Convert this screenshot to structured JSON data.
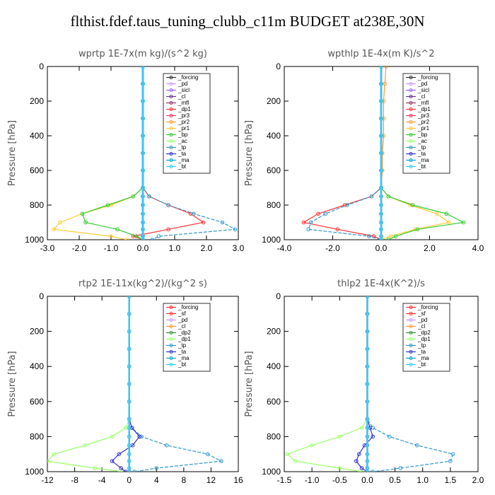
{
  "title": "flthist.fdef.taus_tuning_clubb_c11m  BUDGET at238E,30N",
  "colors": {
    "_forcing": "#333333",
    "_pd": "#cc99ff",
    "_sicl": "#9966ff",
    "_cl": "#663399",
    "_mfl": "#993366",
    "_dp1": "#ff3333",
    "_pr3": "#ff3366",
    "_pr2": "#ff9933",
    "_pr1": "#ffcc33",
    "_bp": "#33cc33",
    "_ac": "#99ff66",
    "_tp": "#3399cc",
    "_ta": "#3333cc",
    "_ma": "#00aacc",
    "_bt": "#33ccff",
    "_sf": "#ff3333",
    "_dp2": "#339933",
    "_forcing_red": "#ff3333"
  },
  "chart_data": [
    {
      "type": "line",
      "title": "wprtp   1E-7x(m kg)/(s^2 kg)",
      "ylabel": "Pressure [hPa]",
      "xlim": [
        -3,
        3
      ],
      "ylim": [
        1000,
        0
      ],
      "xticks": [
        -3,
        -2,
        -1,
        0,
        1,
        2,
        3
      ],
      "xticklabels": [
        "-3.0",
        "-2.0",
        "-1.0",
        "0.0",
        "1.0",
        "2.0",
        "3.0"
      ],
      "yticks": [
        0,
        200,
        400,
        600,
        800,
        1000
      ],
      "yticklabels": [
        "0",
        "200",
        "400",
        "600",
        "800",
        "1000"
      ],
      "legend": [
        "_forcing",
        "_pd",
        "_sicl",
        "_cl",
        "_mfl",
        "_dp1",
        "_pr3",
        "_pr2",
        "_pr1",
        "_bp",
        "_ac",
        "_tp",
        "_ta",
        "_ma",
        "_bt"
      ],
      "legend_position": "top-right",
      "pressure": [
        0,
        100,
        200,
        300,
        400,
        500,
        600,
        700,
        750,
        800,
        850,
        900,
        940,
        980,
        1000
      ],
      "series": [
        {
          "name": "_forcing",
          "color_key": "_forcing",
          "values": [
            0,
            0,
            0,
            0,
            0,
            0,
            0,
            0,
            0,
            0,
            0,
            0,
            0,
            0,
            0
          ]
        },
        {
          "name": "_sicl",
          "color_key": "_sicl",
          "values": [
            0,
            0,
            0,
            0,
            0,
            0,
            0,
            0,
            0,
            0,
            0,
            0,
            0,
            0,
            0
          ]
        },
        {
          "name": "_dp1",
          "color_key": "_dp1",
          "values": [
            0,
            0,
            0,
            0,
            0,
            0,
            0,
            0,
            0.2,
            0.8,
            1.5,
            1.9,
            0.8,
            -0.3,
            0
          ]
        },
        {
          "name": "_pr1",
          "color_key": "_pr1",
          "values": [
            0,
            0,
            0,
            0,
            0,
            0,
            0,
            0,
            -0.3,
            -1.0,
            -1.9,
            -2.6,
            -2.8,
            -1.0,
            -0.5
          ]
        },
        {
          "name": "_bp",
          "color_key": "_bp",
          "values": [
            0,
            0,
            0,
            0,
            0,
            0,
            0,
            0,
            -0.3,
            -1.1,
            -1.9,
            -1.8,
            -0.8,
            -0.2,
            0
          ]
        },
        {
          "name": "_tp",
          "color_key": "_tp",
          "values": [
            0,
            0,
            0,
            0,
            0,
            0,
            0,
            0,
            0.2,
            0.8,
            1.6,
            2.5,
            2.9,
            0.5,
            0.3
          ]
        },
        {
          "name": "_bt",
          "color_key": "_bt",
          "values": [
            0,
            0,
            0,
            0,
            0,
            0,
            0,
            0,
            0,
            0,
            0,
            0,
            0,
            0,
            0
          ]
        }
      ]
    },
    {
      "type": "line",
      "title": "wpthlp   1E-4x(m K)/s^2",
      "ylabel": "Pressure [hPa]",
      "xlim": [
        -4,
        4
      ],
      "ylim": [
        1000,
        0
      ],
      "xticks": [
        -4,
        -2,
        0,
        2,
        4
      ],
      "xticklabels": [
        "-4.0",
        "-2.0",
        "0.0",
        "2.0",
        "4.0"
      ],
      "yticks": [
        0,
        200,
        400,
        600,
        800,
        1000
      ],
      "yticklabels": [
        "0",
        "200",
        "400",
        "600",
        "800",
        "1000"
      ],
      "legend": [
        "_forcing",
        "_pd",
        "_sicl",
        "_cl",
        "_mfl",
        "_dp1",
        "_pr3",
        "_pr2",
        "_pr1",
        "_bp",
        "_ac",
        "_tp",
        "_ta",
        "_ma",
        "_bt"
      ],
      "legend_position": "top-right",
      "pressure": [
        0,
        100,
        200,
        300,
        400,
        500,
        600,
        700,
        750,
        800,
        850,
        900,
        940,
        980,
        1000
      ],
      "series": [
        {
          "name": "_forcing",
          "color_key": "_forcing",
          "values": [
            0,
            0,
            0,
            0,
            0,
            0,
            0,
            0,
            0,
            0,
            0,
            0,
            0,
            0,
            0
          ]
        },
        {
          "name": "_pr2",
          "color_key": "_pr2",
          "values": [
            0.2,
            0.15,
            0.1,
            0.1,
            0.1,
            0.05,
            0.05,
            0,
            0,
            0,
            0,
            0,
            0,
            0,
            0
          ]
        },
        {
          "name": "_pr1",
          "color_key": "_pr1",
          "values": [
            0,
            0,
            0,
            0,
            0,
            0,
            0,
            0,
            0.3,
            1.2,
            2.3,
            2.8,
            1.4,
            0.4,
            0
          ]
        },
        {
          "name": "_dp1",
          "color_key": "_dp1",
          "values": [
            0,
            0,
            0,
            0,
            0,
            0,
            0,
            0,
            -0.4,
            -1.5,
            -2.6,
            -3.2,
            -1.8,
            -0.3,
            0
          ]
        },
        {
          "name": "_bp",
          "color_key": "_bp",
          "values": [
            0,
            0,
            0,
            0,
            0,
            0,
            0,
            0,
            0.3,
            1.3,
            2.7,
            3.4,
            1.5,
            0.6,
            0.3
          ]
        },
        {
          "name": "_tp",
          "color_key": "_tp",
          "values": [
            0,
            0,
            0,
            0,
            0,
            0,
            0,
            0,
            -0.4,
            -1.4,
            -2.3,
            -2.9,
            -3.0,
            -0.5,
            0
          ]
        },
        {
          "name": "_bt",
          "color_key": "_bt",
          "values": [
            0,
            0,
            0,
            0,
            0,
            0,
            0,
            0,
            0,
            0,
            0,
            0,
            0,
            0,
            0
          ]
        }
      ]
    },
    {
      "type": "line",
      "title": "rtp2   1E-11x(kg^2)/(kg^2 s)",
      "ylabel": "Pressure [hPa]",
      "xlim": [
        -12,
        16
      ],
      "ylim": [
        1000,
        0
      ],
      "xticks": [
        -12,
        -8,
        -4,
        0,
        4,
        8,
        12,
        16
      ],
      "xticklabels": [
        "-12",
        "-8",
        "-4",
        "0",
        "4",
        "8",
        "12",
        "16"
      ],
      "yticks": [
        0,
        200,
        400,
        600,
        800,
        1000
      ],
      "yticklabels": [
        "0",
        "200",
        "400",
        "600",
        "800",
        "1000"
      ],
      "legend": [
        "_forcing",
        "_sf",
        "_pd",
        "_cl",
        "_dp2",
        "_dp1",
        "_tp",
        "_ta",
        "_ma",
        "_bt"
      ],
      "legend_position": "top-right",
      "pressure": [
        0,
        100,
        200,
        300,
        400,
        500,
        600,
        700,
        750,
        800,
        850,
        900,
        940,
        980,
        1000
      ],
      "series": [
        {
          "name": "_dp1",
          "color_key": "_ac",
          "values": [
            0,
            0,
            0,
            0,
            0,
            0,
            0,
            0,
            -0.5,
            -2.5,
            -6.5,
            -11,
            -12,
            -5,
            -1
          ]
        },
        {
          "name": "_tp",
          "color_key": "_tp",
          "values": [
            0,
            0,
            0,
            0,
            0,
            0,
            0,
            0,
            0.4,
            1.8,
            5.5,
            11.5,
            13.5,
            4,
            0.8
          ]
        },
        {
          "name": "_ta",
          "color_key": "_ta",
          "values": [
            0,
            0,
            0,
            0,
            0,
            0,
            0,
            0,
            0.4,
            1.5,
            0.5,
            -1.5,
            -2.5,
            -1.2,
            -0.5
          ]
        },
        {
          "name": "_forcing",
          "color_key": "_forcing_red",
          "values": [
            0,
            0,
            0,
            0,
            0,
            0,
            0,
            0,
            0,
            0,
            0,
            0,
            0,
            0,
            0
          ]
        },
        {
          "name": "_bt",
          "color_key": "_bt",
          "values": [
            0,
            0,
            0,
            0,
            0,
            0,
            0,
            0,
            0,
            0,
            0,
            0,
            0,
            0,
            0
          ]
        }
      ]
    },
    {
      "type": "line",
      "title": "thlp2   1E-4x(K^2)/s",
      "ylabel": "Pressure [hPa]",
      "xlim": [
        -1.5,
        2.0
      ],
      "ylim": [
        1000,
        0
      ],
      "xticks": [
        -1.5,
        -1.0,
        -0.5,
        0,
        0.5,
        1.0,
        1.5,
        2.0
      ],
      "xticklabels": [
        "-1.5",
        "-1.0",
        "-0.5",
        "0.0",
        "0.5",
        "1.0",
        "1.5",
        "2.0"
      ],
      "yticks": [
        0,
        200,
        400,
        600,
        800,
        1000
      ],
      "yticklabels": [
        "0",
        "200",
        "400",
        "600",
        "800",
        "1000"
      ],
      "legend": [
        "_forcing",
        "_sf",
        "_pd",
        "_cl",
        "_dp2",
        "_dp1",
        "_tp",
        "_ta",
        "_ma",
        "_bt"
      ],
      "legend_position": "top-right",
      "pressure": [
        0,
        100,
        200,
        300,
        400,
        500,
        600,
        700,
        750,
        800,
        850,
        900,
        940,
        980,
        1000
      ],
      "series": [
        {
          "name": "_dp1",
          "color_key": "_ac",
          "values": [
            0,
            0,
            0,
            0,
            0,
            0,
            0,
            0,
            -0.1,
            -0.5,
            -1.0,
            -1.45,
            -1.3,
            -0.5,
            -0.1
          ]
        },
        {
          "name": "_tp",
          "color_key": "_tp",
          "values": [
            0,
            0,
            0,
            0,
            0,
            0,
            0,
            0,
            0.1,
            0.4,
            0.9,
            1.55,
            1.5,
            0.6,
            0.1
          ]
        },
        {
          "name": "_ta",
          "color_key": "_ta",
          "values": [
            0,
            0,
            0,
            0,
            0,
            0,
            0,
            0,
            0.05,
            0.1,
            -0.05,
            -0.15,
            -0.2,
            -0.1,
            0
          ]
        },
        {
          "name": "_forcing",
          "color_key": "_forcing_red",
          "values": [
            0,
            0,
            0,
            0,
            0,
            0,
            0,
            0,
            0,
            0,
            0,
            0,
            0,
            0,
            0
          ]
        },
        {
          "name": "_bt",
          "color_key": "_bt",
          "values": [
            0,
            0,
            0,
            0,
            0,
            0,
            0,
            0,
            0,
            0,
            0,
            0,
            0,
            0,
            0
          ]
        }
      ]
    }
  ]
}
